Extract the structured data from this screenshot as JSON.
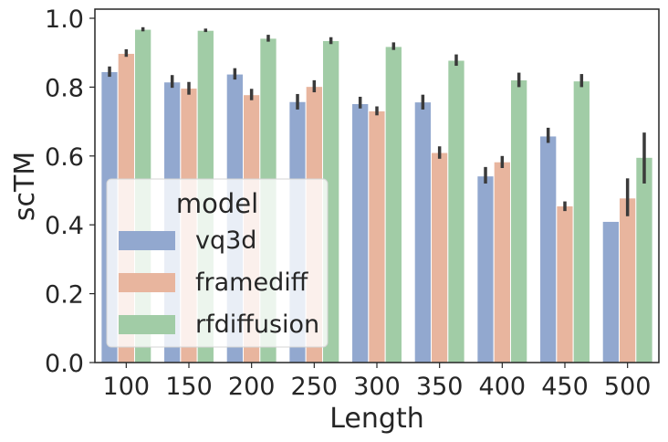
{
  "chart_data": {
    "type": "bar",
    "xlabel": "Length",
    "ylabel": "scTM",
    "categories": [
      "100",
      "150",
      "200",
      "250",
      "300",
      "350",
      "400",
      "450",
      "500"
    ],
    "ylim": [
      0,
      1.0
    ],
    "yticks": [
      "0.0",
      "0.2",
      "0.4",
      "0.6",
      "0.8",
      "1.0"
    ],
    "grid": false,
    "legend": {
      "title": "model",
      "placement": "lower-left"
    },
    "series": [
      {
        "name": "vq3d",
        "color": "#92a8cf",
        "values": [
          0.845,
          0.815,
          0.838,
          0.758,
          0.752,
          0.757,
          0.542,
          0.658,
          0.41
        ],
        "err_low": [
          0.83,
          0.798,
          0.822,
          0.735,
          0.738,
          0.735,
          0.52,
          0.638,
          0.41
        ],
        "err_high": [
          0.86,
          0.835,
          0.855,
          0.78,
          0.772,
          0.778,
          0.568,
          0.682,
          0.41
        ]
      },
      {
        "name": "framediff",
        "color": "#e8b59e",
        "values": [
          0.898,
          0.797,
          0.778,
          0.802,
          0.731,
          0.61,
          0.583,
          0.455,
          0.478
        ],
        "err_low": [
          0.888,
          0.778,
          0.762,
          0.785,
          0.718,
          0.592,
          0.565,
          0.44,
          0.425
        ],
        "err_high": [
          0.91,
          0.815,
          0.795,
          0.82,
          0.744,
          0.628,
          0.6,
          0.468,
          0.535
        ]
      },
      {
        "name": "rfdiffusion",
        "color": "#a1cca6",
        "values": [
          0.968,
          0.965,
          0.942,
          0.935,
          0.918,
          0.878,
          0.821,
          0.818,
          0.596
        ],
        "err_low": [
          0.962,
          0.96,
          0.932,
          0.925,
          0.908,
          0.862,
          0.8,
          0.8,
          0.52
        ],
        "err_high": [
          0.974,
          0.97,
          0.952,
          0.945,
          0.93,
          0.895,
          0.842,
          0.838,
          0.668
        ]
      }
    ]
  }
}
